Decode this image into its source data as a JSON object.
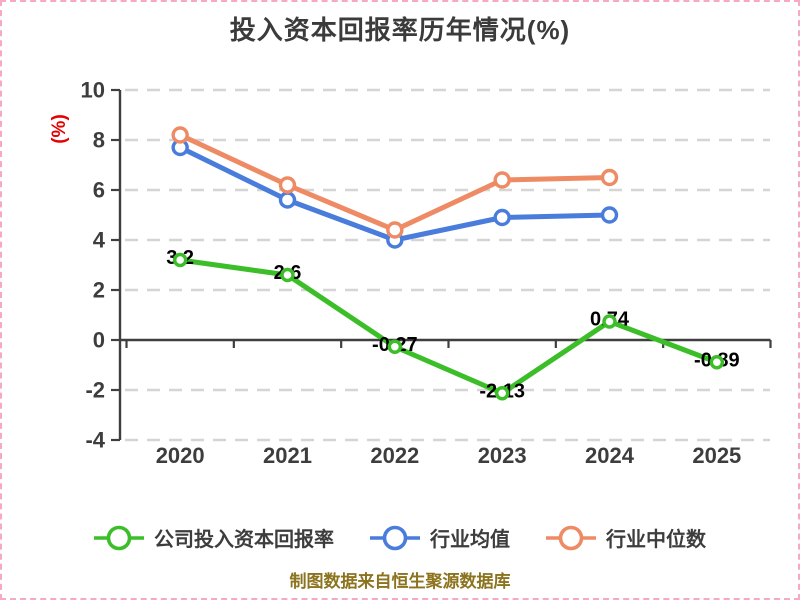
{
  "page": {
    "title": "投入资本回报率历年情况(%)",
    "footer": "制图数据来自恒生聚源数据库"
  },
  "colors": {
    "company_green": "#3bbe28",
    "industry_mean_blue": "#4a7cdc",
    "industry_median_orange": "#ee8b64",
    "grid": "#d5d5d5",
    "axis": "#3f3f3f",
    "tick_text": "#3d3d3d",
    "data_label": "#000000",
    "ylabel_red": "#e60000",
    "footer_text": "#8c731e",
    "border_pink": "#f7a8c4",
    "marker_fill": "#ffffff"
  },
  "chart_data": {
    "type": "line",
    "title": "投入资本回报率历年情况(%)",
    "ylabel": "(%)",
    "categories": [
      "2020",
      "2021",
      "2022",
      "2023",
      "2024",
      "2025"
    ],
    "y_ticks": [
      10,
      8,
      6,
      4,
      2,
      0,
      -2,
      -4
    ],
    "ylim": [
      -4,
      10
    ],
    "grid": "horizontal-dashed",
    "legend_position": "bottom",
    "series": [
      {
        "key": "company-roic",
        "name": "公司投入资本回报率",
        "color": "#3bbe28",
        "values": [
          3.2,
          2.6,
          -0.27,
          -2.13,
          0.74,
          -0.89
        ],
        "point_labels": [
          "3.2",
          "2.6",
          "-0.27",
          "-2.13",
          "0.74",
          "-0.89"
        ]
      },
      {
        "key": "industry-mean",
        "name": "行业均值",
        "color": "#4a7cdc",
        "values": [
          7.7,
          5.6,
          4.0,
          4.9,
          5.0,
          null
        ],
        "point_labels": []
      },
      {
        "key": "industry-median",
        "name": "行业中位数",
        "color": "#ee8b64",
        "values": [
          8.2,
          6.2,
          4.4,
          6.4,
          6.5,
          null
        ],
        "point_labels": []
      }
    ]
  }
}
